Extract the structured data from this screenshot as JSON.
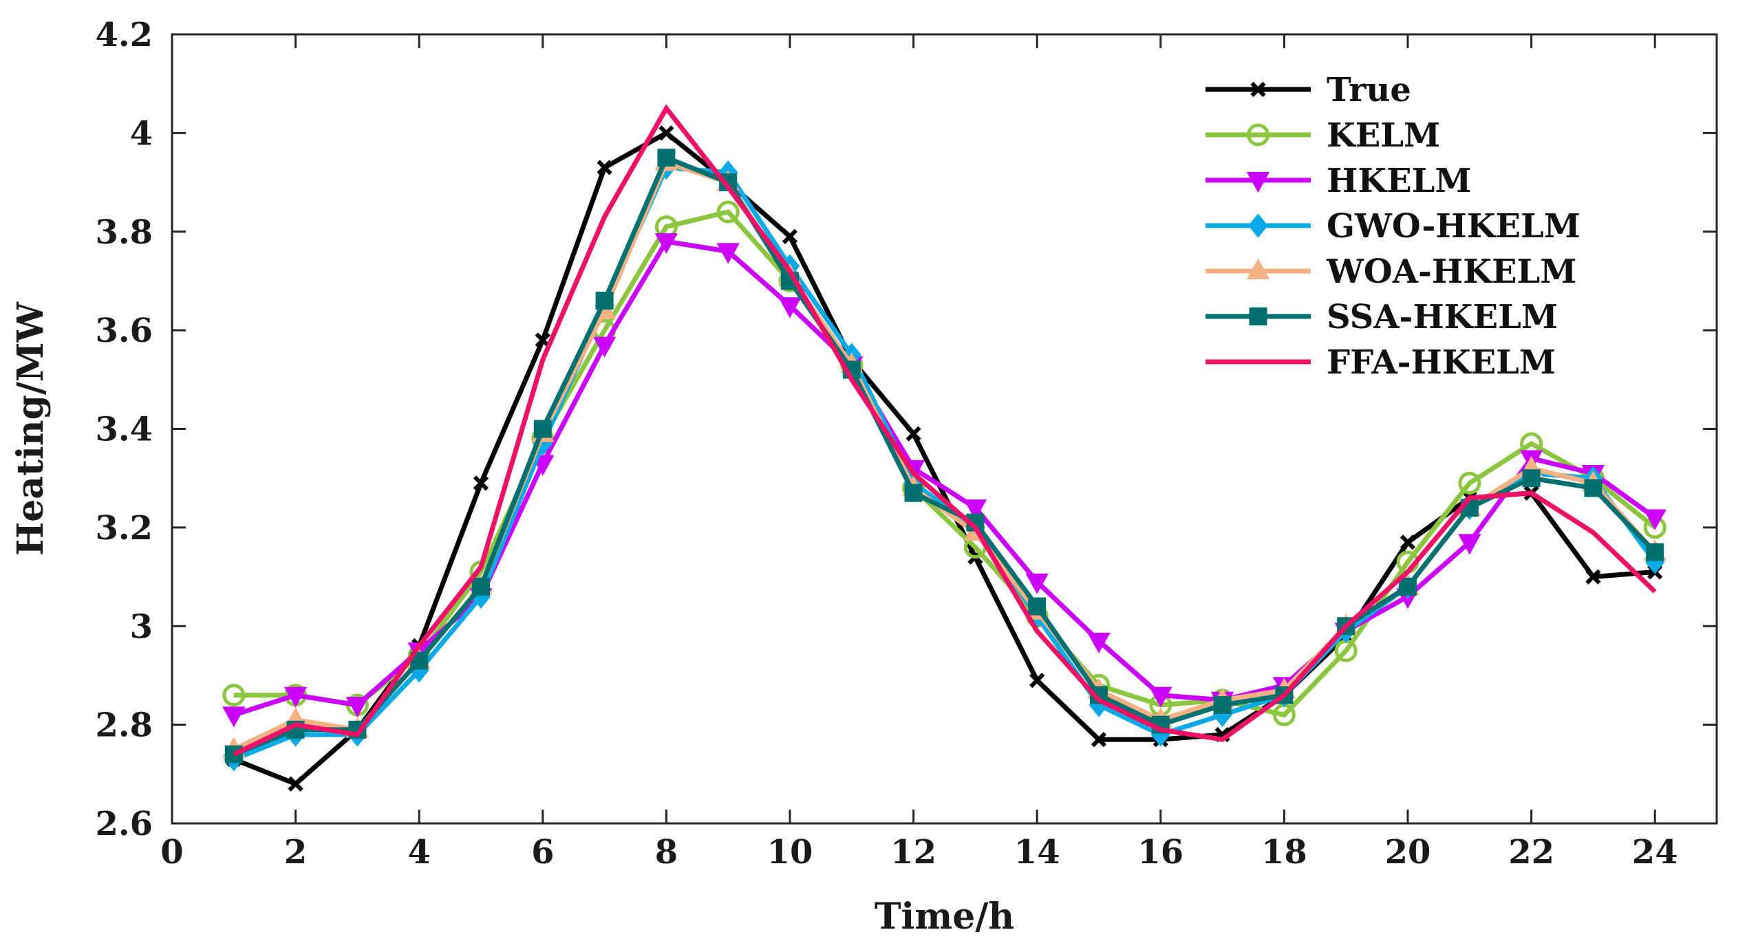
{
  "chart_data": {
    "type": "line",
    "title": "",
    "xlabel": "Time/h",
    "ylabel": "Heating/MW",
    "xlim": [
      0,
      25
    ],
    "ylim": [
      2.6,
      4.2
    ],
    "xticks": [
      0,
      2,
      4,
      6,
      8,
      10,
      12,
      14,
      16,
      18,
      20,
      22,
      24
    ],
    "xtick_labels": [
      "0",
      "2",
      "4",
      "6",
      "8",
      "10",
      "12",
      "14",
      "16",
      "18",
      "20",
      "22",
      "24"
    ],
    "yticks": [
      2.6,
      2.8,
      3.0,
      3.2,
      3.4,
      3.6,
      3.8,
      4.0,
      4.2
    ],
    "ytick_labels": [
      "2.6",
      "2.8",
      "3",
      "3.2",
      "3.4",
      "3.6",
      "3.8",
      "4",
      "4.2"
    ],
    "grid": false,
    "legend_position": "top-right",
    "x": [
      1,
      2,
      3,
      4,
      5,
      6,
      7,
      8,
      9,
      10,
      11,
      12,
      13,
      14,
      15,
      16,
      17,
      18,
      19,
      20,
      21,
      22,
      23,
      24
    ],
    "series": [
      {
        "name": "True",
        "color": "#000000",
        "marker": "x",
        "values": [
          2.73,
          2.68,
          2.79,
          2.96,
          3.29,
          3.58,
          3.93,
          4.0,
          3.9,
          3.79,
          3.54,
          3.39,
          3.14,
          2.89,
          2.77,
          2.77,
          2.78,
          2.86,
          2.98,
          3.17,
          3.26,
          3.27,
          3.1,
          3.11
        ]
      },
      {
        "name": "KELM",
        "color": "#8cc63f",
        "marker": "circle",
        "values": [
          2.86,
          2.86,
          2.84,
          2.94,
          3.11,
          3.38,
          3.6,
          3.81,
          3.84,
          3.7,
          3.53,
          3.28,
          3.16,
          3.02,
          2.88,
          2.84,
          2.85,
          2.82,
          2.95,
          3.13,
          3.29,
          3.37,
          3.3,
          3.2
        ]
      },
      {
        "name": "HKELM",
        "color": "#cc00ff",
        "marker": "triangle-down",
        "values": [
          2.82,
          2.86,
          2.84,
          2.95,
          3.06,
          3.33,
          3.57,
          3.78,
          3.76,
          3.65,
          3.53,
          3.32,
          3.24,
          3.09,
          2.97,
          2.86,
          2.85,
          2.88,
          2.99,
          3.06,
          3.17,
          3.34,
          3.31,
          3.22
        ]
      },
      {
        "name": "GWO-HKELM",
        "color": "#0aaae6",
        "marker": "diamond",
        "values": [
          2.73,
          2.78,
          2.78,
          2.91,
          3.06,
          3.37,
          3.65,
          3.93,
          3.92,
          3.73,
          3.55,
          3.29,
          3.2,
          3.02,
          2.84,
          2.78,
          2.82,
          2.86,
          2.99,
          3.08,
          3.24,
          3.31,
          3.3,
          3.13
        ]
      },
      {
        "name": "WOA-HKELM",
        "color": "#f4b183",
        "marker": "triangle-up",
        "values": [
          2.75,
          2.81,
          2.79,
          2.93,
          3.08,
          3.39,
          3.64,
          3.94,
          3.9,
          3.71,
          3.53,
          3.28,
          3.19,
          3.03,
          2.87,
          2.81,
          2.85,
          2.87,
          3.0,
          3.08,
          3.24,
          3.32,
          3.29,
          3.15
        ]
      },
      {
        "name": "SSA-HKELM",
        "color": "#007070",
        "marker": "square",
        "values": [
          2.74,
          2.79,
          2.79,
          2.93,
          3.08,
          3.4,
          3.66,
          3.95,
          3.9,
          3.7,
          3.52,
          3.27,
          3.21,
          3.04,
          2.86,
          2.8,
          2.84,
          2.86,
          3.0,
          3.08,
          3.24,
          3.3,
          3.28,
          3.15
        ]
      },
      {
        "name": "FFA-HKELM",
        "color": "#ee1166",
        "marker": "none",
        "values": [
          2.74,
          2.8,
          2.78,
          2.96,
          3.12,
          3.54,
          3.83,
          4.05,
          3.89,
          3.72,
          3.5,
          3.31,
          3.2,
          2.99,
          2.85,
          2.79,
          2.77,
          2.86,
          3.0,
          3.11,
          3.26,
          3.27,
          3.19,
          3.07
        ]
      }
    ]
  }
}
